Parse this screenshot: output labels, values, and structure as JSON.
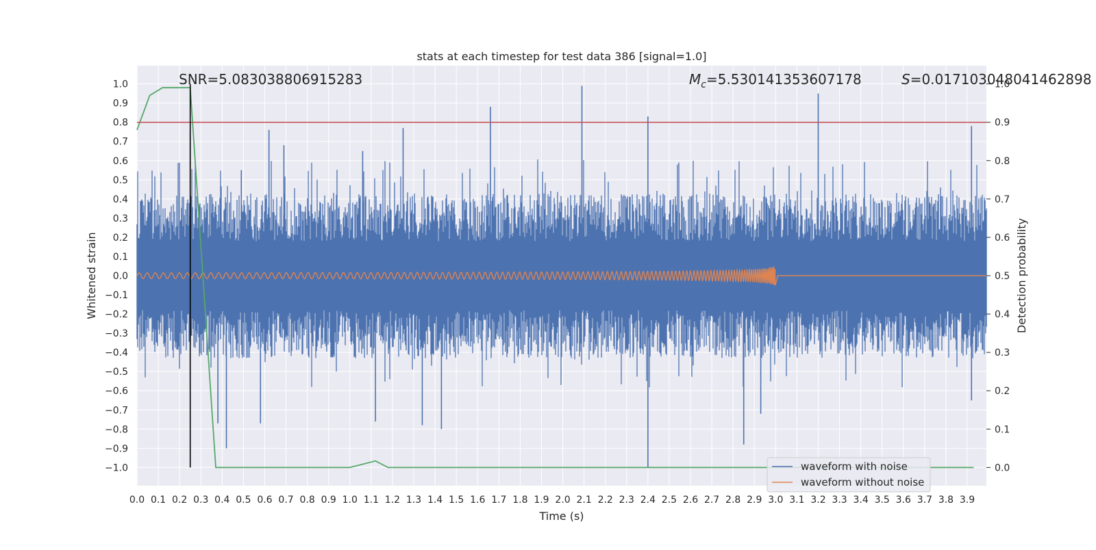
{
  "chart_data": {
    "type": "line",
    "title": "stats at each timestep for test data 386 [signal=1.0]",
    "xlabel": "Time (s)",
    "ylabel": "Whitened strain",
    "y2label": "Detection probability",
    "xlim": [
      0.0,
      3.99
    ],
    "ylim": [
      -1.095,
      1.095
    ],
    "y2lim": [
      -0.0475,
      1.0475
    ],
    "xticks": [
      "0.0",
      "0.1",
      "0.2",
      "0.3",
      "0.4",
      "0.5",
      "0.6",
      "0.7",
      "0.8",
      "0.9",
      "1.0",
      "1.1",
      "1.2",
      "1.3",
      "1.4",
      "1.5",
      "1.6",
      "1.7",
      "1.8",
      "1.9",
      "2.0",
      "2.1",
      "2.2",
      "2.3",
      "2.4",
      "2.5",
      "2.6",
      "2.7",
      "2.8",
      "2.9",
      "3.0",
      "3.1",
      "3.2",
      "3.3",
      "3.4",
      "3.5",
      "3.6",
      "3.7",
      "3.8",
      "3.9"
    ],
    "yticks": [
      "1.0",
      "0.9",
      "0.8",
      "0.7",
      "0.6",
      "0.5",
      "0.4",
      "0.3",
      "0.2",
      "0.1",
      "0.0",
      "−0.1",
      "−0.2",
      "−0.3",
      "−0.4",
      "−0.5",
      "−0.6",
      "−0.7",
      "−0.8",
      "−0.9",
      "−1.0"
    ],
    "y2ticks": [
      "1.0",
      "0.9",
      "0.8",
      "0.7",
      "0.6",
      "0.5",
      "0.4",
      "0.3",
      "0.2",
      "0.1",
      "0.0"
    ],
    "grid": true,
    "legend_position": "bottom-right",
    "annotations": {
      "snr": "SNR=5.083038806915283",
      "mc_symbol": "M",
      "mc_sub": "c",
      "mc_value": "=5.530141353607178",
      "s_symbol": "S",
      "s_value": "=0.017103048041462898"
    },
    "series": [
      {
        "name": "waveform with noise",
        "axis": "left",
        "color": "#4c72b0",
        "description_values": "dense gaussian-like noise, typical amplitude ±0.3, peaks to ~0.95",
        "spikes": [
          {
            "x": 0.25,
            "y": 0.75
          },
          {
            "x": 0.25,
            "y": -0.59
          },
          {
            "x": 0.38,
            "y": -0.77
          },
          {
            "x": 0.42,
            "y": -0.9
          },
          {
            "x": 0.49,
            "y": 0.55
          },
          {
            "x": 0.58,
            "y": -0.77
          },
          {
            "x": 0.62,
            "y": 0.76
          },
          {
            "x": 0.69,
            "y": 0.68
          },
          {
            "x": 1.06,
            "y": 0.65
          },
          {
            "x": 1.12,
            "y": -0.76
          },
          {
            "x": 1.25,
            "y": 0.77
          },
          {
            "x": 1.34,
            "y": -0.78
          },
          {
            "x": 1.43,
            "y": -0.8
          },
          {
            "x": 1.66,
            "y": 0.88
          },
          {
            "x": 2.09,
            "y": 0.99
          },
          {
            "x": 2.4,
            "y": 0.83
          },
          {
            "x": 2.4,
            "y": -1.0
          },
          {
            "x": 2.85,
            "y": -0.88
          },
          {
            "x": 2.93,
            "y": -0.72
          },
          {
            "x": 3.2,
            "y": 0.95
          },
          {
            "x": 3.92,
            "y": 0.78
          },
          {
            "x": 3.92,
            "y": -0.65
          }
        ]
      },
      {
        "name": "waveform without noise",
        "axis": "left",
        "color": "#dd8452",
        "description_values": "chirp, amplitude ~0.015 rising to ~0.12 at merger (t≈3.0 s), then ~0"
      },
      {
        "name": "",
        "axis": "right",
        "color": "#55a868",
        "x": [
          0.0,
          0.06,
          0.12,
          0.18,
          0.25,
          0.37,
          1.0,
          1.12,
          1.18,
          3.93
        ],
        "values": [
          0.88,
          0.97,
          0.99,
          0.99,
          0.99,
          0.0,
          0.0,
          0.017,
          0.0,
          0.0
        ]
      }
    ],
    "threshold_line": {
      "axis": "right",
      "y": 0.9,
      "color": "#c44e52"
    },
    "marker_line": {
      "axis": "left",
      "x": 0.25,
      "y_from": -1.0,
      "y_to": 1.0,
      "color": "#000000"
    }
  }
}
